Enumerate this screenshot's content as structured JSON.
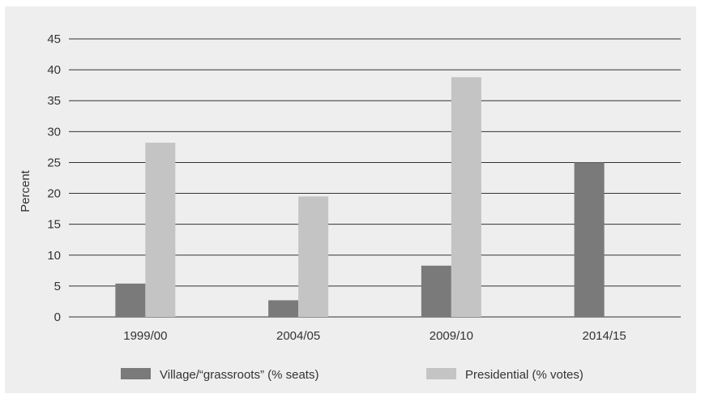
{
  "chart_data": {
    "type": "bar",
    "categories": [
      "1999/00",
      "2004/05",
      "2009/10",
      "2014/15"
    ],
    "series": [
      {
        "name": "Village/“grassroots” (% seats)",
        "values": [
          5.4,
          2.7,
          8.3,
          25.0
        ],
        "color": "#7a7a7a"
      },
      {
        "name": "Presidential (% votes)",
        "values": [
          28.2,
          19.5,
          38.8,
          null
        ],
        "color": "#c4c4c4"
      }
    ],
    "title": "",
    "xlabel": "",
    "ylabel": "Percent",
    "ylim": [
      0,
      45
    ],
    "yticks": [
      0,
      5,
      10,
      15,
      20,
      25,
      30,
      35,
      40,
      45
    ],
    "grid": "horizontal",
    "legend_position": "bottom"
  }
}
